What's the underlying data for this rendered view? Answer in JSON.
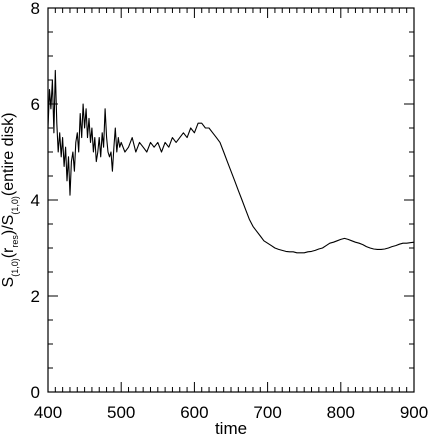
{
  "chart_data": {
    "type": "line",
    "title": "",
    "xlabel": "time",
    "ylabel": {
      "parts": [
        {
          "text": "S",
          "sub": false
        },
        {
          "text": "(1,0)",
          "sub": true
        },
        {
          "text": "(r",
          "sub": false
        },
        {
          "text": "res",
          "sub": true
        },
        {
          "text": ")/S",
          "sub": false
        },
        {
          "text": "(1,0)",
          "sub": true
        },
        {
          "text": "(entire disk)",
          "sub": false
        }
      ]
    },
    "xlim": [
      400,
      900
    ],
    "ylim": [
      0,
      8
    ],
    "xticks": [
      400,
      500,
      600,
      700,
      800,
      900
    ],
    "yticks": [
      0,
      2,
      4,
      6,
      8
    ],
    "xtick_labels": [
      "400",
      "500",
      "600",
      "700",
      "800",
      "900"
    ],
    "ytick_labels": [
      "0",
      "2",
      "4",
      "6",
      "8"
    ],
    "grid": false,
    "line_color": "#000000",
    "series": [
      {
        "name": "",
        "x": [
          400,
          402,
          404,
          406,
          408,
          410,
          412,
          414,
          416,
          418,
          420,
          422,
          424,
          426,
          428,
          430,
          432,
          434,
          436,
          438,
          440,
          442,
          444,
          446,
          448,
          450,
          452,
          454,
          456,
          458,
          460,
          462,
          464,
          466,
          468,
          470,
          472,
          474,
          476,
          478,
          480,
          482,
          484,
          486,
          488,
          490,
          492,
          494,
          496,
          498,
          500,
          505,
          510,
          515,
          520,
          525,
          530,
          535,
          540,
          545,
          550,
          555,
          560,
          565,
          570,
          575,
          580,
          585,
          590,
          595,
          600,
          605,
          610,
          615,
          620,
          625,
          630,
          635,
          640,
          645,
          650,
          655,
          660,
          665,
          670,
          675,
          680,
          685,
          690,
          695,
          700,
          705,
          710,
          715,
          720,
          725,
          730,
          735,
          740,
          745,
          750,
          755,
          760,
          765,
          770,
          775,
          780,
          785,
          790,
          795,
          800,
          805,
          810,
          815,
          820,
          825,
          830,
          835,
          840,
          845,
          850,
          855,
          860,
          865,
          870,
          875,
          880,
          885,
          890,
          895,
          900
        ],
        "y": [
          5.5,
          6.3,
          5.9,
          6.5,
          5.4,
          6.7,
          5.6,
          5.0,
          5.4,
          4.9,
          5.3,
          4.7,
          5.1,
          4.4,
          4.9,
          4.1,
          4.8,
          5.0,
          4.6,
          5.2,
          5.4,
          5.0,
          5.8,
          5.3,
          6.0,
          5.5,
          5.9,
          5.3,
          5.7,
          5.2,
          5.5,
          5.0,
          5.3,
          4.8,
          5.0,
          5.3,
          4.9,
          5.4,
          5.1,
          5.9,
          5.3,
          5.0,
          4.9,
          5.0,
          4.6,
          5.1,
          5.5,
          5.0,
          5.3,
          5.1,
          5.2,
          5.0,
          5.1,
          5.3,
          5.0,
          5.2,
          5.1,
          5.0,
          5.2,
          5.1,
          5.2,
          5.0,
          5.2,
          5.1,
          5.3,
          5.2,
          5.3,
          5.4,
          5.3,
          5.5,
          5.4,
          5.6,
          5.6,
          5.5,
          5.5,
          5.4,
          5.3,
          5.2,
          5.0,
          4.8,
          4.6,
          4.4,
          4.2,
          4.0,
          3.8,
          3.6,
          3.45,
          3.35,
          3.25,
          3.15,
          3.1,
          3.05,
          3.0,
          2.97,
          2.95,
          2.93,
          2.92,
          2.92,
          2.9,
          2.9,
          2.9,
          2.92,
          2.93,
          2.95,
          2.98,
          3.0,
          3.05,
          3.1,
          3.12,
          3.15,
          3.18,
          3.2,
          3.18,
          3.15,
          3.12,
          3.1,
          3.07,
          3.03,
          3.0,
          2.98,
          2.97,
          2.97,
          2.98,
          3.0,
          3.03,
          3.05,
          3.08,
          3.1,
          3.1,
          3.11,
          3.12
        ]
      }
    ]
  }
}
